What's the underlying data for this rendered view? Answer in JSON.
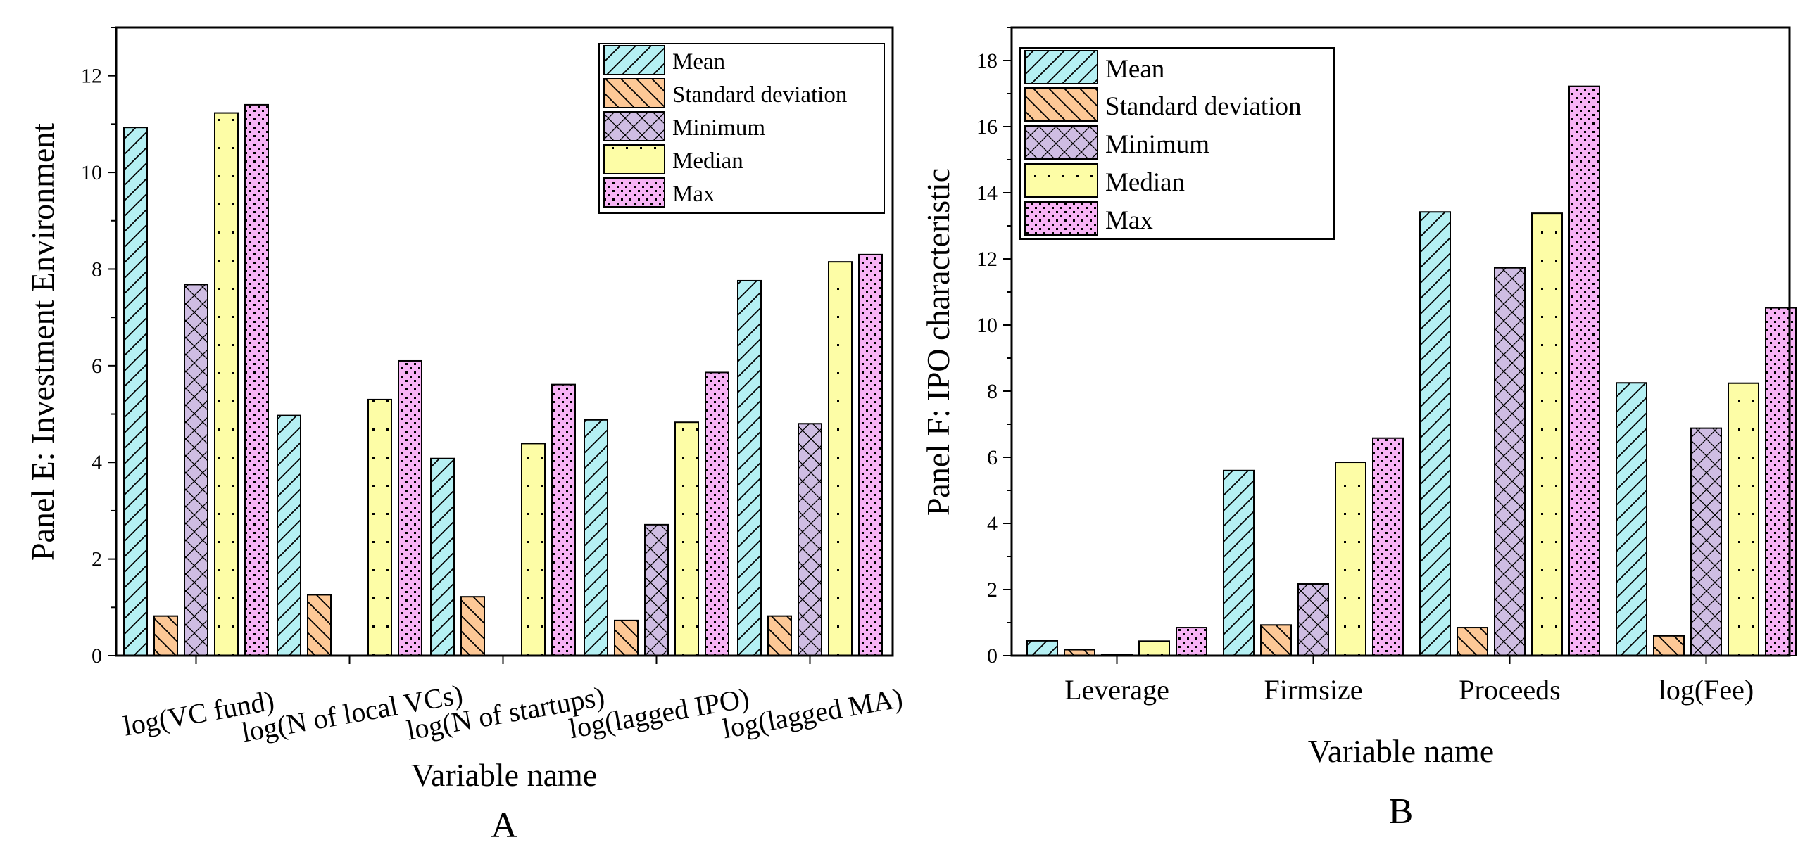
{
  "figure": {
    "letters": [
      "A",
      "B"
    ]
  },
  "colors": {
    "mean": "#b5f0f3",
    "sd": "#fdc896",
    "minimum": "#cfbde3",
    "median": "#fdfda6",
    "max": "#f7b3f5",
    "hatch": "#000000"
  },
  "chart_data": [
    {
      "type": "bar",
      "panel": "A",
      "ylabel": "Panel E: Investment Environment",
      "xlabel": "Variable name",
      "ylim": [
        0,
        13
      ],
      "yticks": [
        0,
        2,
        4,
        6,
        8,
        10,
        12
      ],
      "legend_position": "top-right",
      "categories": [
        "log(VC fund)",
        "log(N of local VCs)",
        "log(N of startups)",
        "log(lagged IPO)",
        "log(lagged MA)"
      ],
      "series": [
        {
          "name": "Mean",
          "key": "mean",
          "values": [
            10.93,
            4.97,
            4.08,
            4.88,
            7.76
          ]
        },
        {
          "name": "Standard deviation",
          "key": "sd",
          "values": [
            0.82,
            1.26,
            1.22,
            0.73,
            0.82
          ]
        },
        {
          "name": "Minimum",
          "key": "minimum",
          "values": [
            7.68,
            0,
            0,
            2.71,
            4.8
          ]
        },
        {
          "name": "Median",
          "key": "median",
          "values": [
            11.23,
            5.3,
            4.39,
            4.83,
            8.15
          ]
        },
        {
          "name": "Max",
          "key": "max",
          "values": [
            11.4,
            6.1,
            5.61,
            5.86,
            8.3
          ]
        }
      ]
    },
    {
      "type": "bar",
      "panel": "B",
      "ylabel": "Panel F: IPO characteristic",
      "xlabel": "Variable name",
      "ylim": [
        0,
        19
      ],
      "yticks": [
        0,
        2,
        4,
        6,
        8,
        10,
        12,
        14,
        16,
        18
      ],
      "legend_position": "top-left",
      "categories": [
        "Leverage",
        "Firmsize",
        "Proceeds",
        "log(Fee)"
      ],
      "series": [
        {
          "name": "Mean",
          "key": "mean",
          "values": [
            0.45,
            5.6,
            13.42,
            8.25
          ]
        },
        {
          "name": "Standard deviation",
          "key": "sd",
          "values": [
            0.18,
            0.93,
            0.85,
            0.6
          ]
        },
        {
          "name": "Minimum",
          "key": "minimum",
          "values": [
            0.04,
            2.17,
            11.73,
            6.88
          ]
        },
        {
          "name": "Median",
          "key": "median",
          "values": [
            0.44,
            5.85,
            13.38,
            8.24
          ]
        },
        {
          "name": "Max",
          "key": "max",
          "values": [
            0.85,
            6.58,
            17.22,
            10.52
          ]
        }
      ]
    }
  ]
}
